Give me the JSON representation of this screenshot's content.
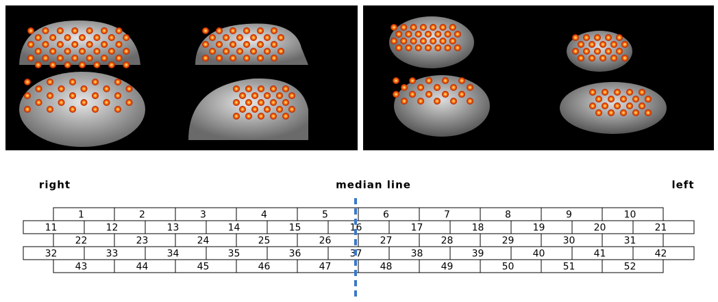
{
  "labels": {
    "right": "right",
    "median": "median line",
    "left": "left"
  },
  "grid": {
    "rows": [
      [
        1,
        2,
        3,
        4,
        5,
        6,
        7,
        8,
        9,
        10
      ],
      [
        11,
        12,
        13,
        14,
        15,
        16,
        17,
        18,
        19,
        20,
        21
      ],
      [
        22,
        23,
        24,
        25,
        26,
        27,
        28,
        29,
        30,
        31
      ],
      [
        32,
        33,
        34,
        35,
        36,
        37,
        38,
        39,
        40,
        41,
        42
      ],
      [
        43,
        44,
        45,
        46,
        47,
        48,
        49,
        50,
        51,
        52
      ]
    ]
  }
}
